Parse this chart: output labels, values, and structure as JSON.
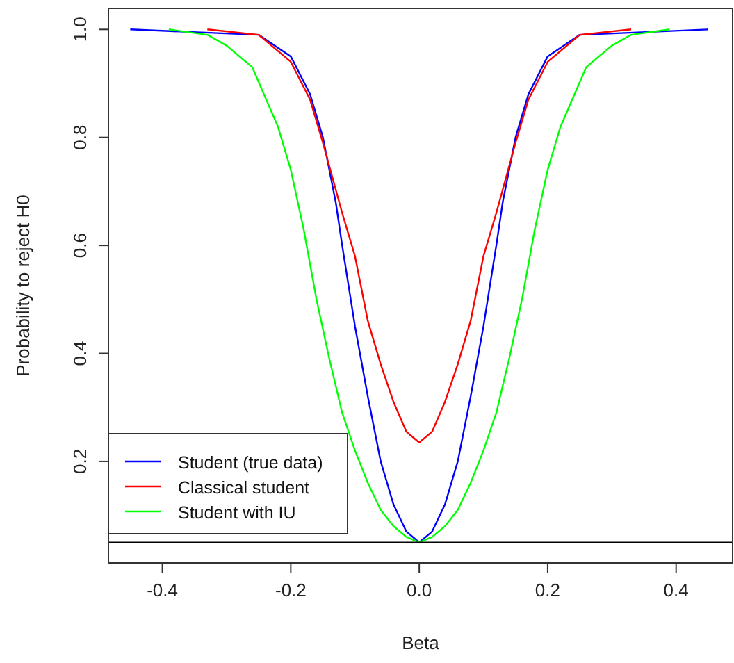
{
  "chart_data": {
    "type": "line",
    "xlabel": "Beta",
    "ylabel": "Probability to reject H0",
    "xlim": [
      -0.484,
      0.488
    ],
    "ylim": [
      0.012,
      1.039
    ],
    "xticks": [
      -0.4,
      -0.2,
      {
        "value": 0,
        "label": "0.0"
      },
      0.2,
      0.4
    ],
    "yticks": [
      0.2,
      0.4,
      0.6,
      0.8,
      {
        "value": 1,
        "label": "1.0"
      }
    ],
    "grid": false,
    "legend": "bottom left",
    "line_style": "solid",
    "marker": "none",
    "ref_lines": [
      {
        "axis": "y",
        "value": 0.05,
        "color": "#000000"
      }
    ],
    "series": [
      {
        "name": "Student (true data)",
        "color": "#0000ff",
        "x": [
          -0.45,
          -0.25,
          -0.2,
          -0.17,
          -0.15,
          -0.13,
          -0.12,
          -0.1,
          -0.08,
          -0.06,
          -0.04,
          -0.02,
          0,
          0.02,
          0.04,
          0.06,
          0.08,
          0.1,
          0.12,
          0.13,
          0.15,
          0.17,
          0.2,
          0.25,
          0.45
        ],
        "values": [
          1,
          0.99,
          0.95,
          0.88,
          0.8,
          0.68,
          0.6,
          0.45,
          0.32,
          0.2,
          0.12,
          0.07,
          0.05,
          0.07,
          0.12,
          0.2,
          0.32,
          0.45,
          0.6,
          0.68,
          0.8,
          0.88,
          0.95,
          0.99,
          1
        ]
      },
      {
        "name": "Classical student",
        "color": "#ff0000",
        "x": [
          -0.33,
          -0.25,
          -0.2,
          -0.17,
          -0.15,
          -0.12,
          -0.1,
          -0.08,
          -0.06,
          -0.04,
          -0.02,
          0,
          0.02,
          0.04,
          0.06,
          0.08,
          0.1,
          0.12,
          0.15,
          0.17,
          0.2,
          0.25,
          0.33
        ],
        "values": [
          1,
          0.99,
          0.94,
          0.87,
          0.79,
          0.66,
          0.58,
          0.46,
          0.38,
          0.31,
          0.255,
          0.235,
          0.255,
          0.31,
          0.38,
          0.46,
          0.58,
          0.66,
          0.79,
          0.87,
          0.94,
          0.99,
          1
        ]
      },
      {
        "name": "Student with IU",
        "color": "#00ff00",
        "x": [
          -0.39,
          -0.33,
          -0.3,
          -0.26,
          -0.22,
          -0.2,
          -0.18,
          -0.16,
          -0.14,
          -0.12,
          -0.1,
          -0.08,
          -0.06,
          -0.04,
          -0.02,
          0,
          0.02,
          0.04,
          0.06,
          0.08,
          0.1,
          0.12,
          0.14,
          0.16,
          0.18,
          0.2,
          0.22,
          0.26,
          0.3,
          0.33,
          0.39
        ],
        "values": [
          1,
          0.99,
          0.97,
          0.93,
          0.82,
          0.74,
          0.63,
          0.5,
          0.39,
          0.29,
          0.22,
          0.16,
          0.11,
          0.08,
          0.06,
          0.05,
          0.06,
          0.08,
          0.11,
          0.16,
          0.22,
          0.29,
          0.39,
          0.5,
          0.63,
          0.74,
          0.82,
          0.93,
          0.97,
          0.99,
          1
        ]
      }
    ]
  }
}
